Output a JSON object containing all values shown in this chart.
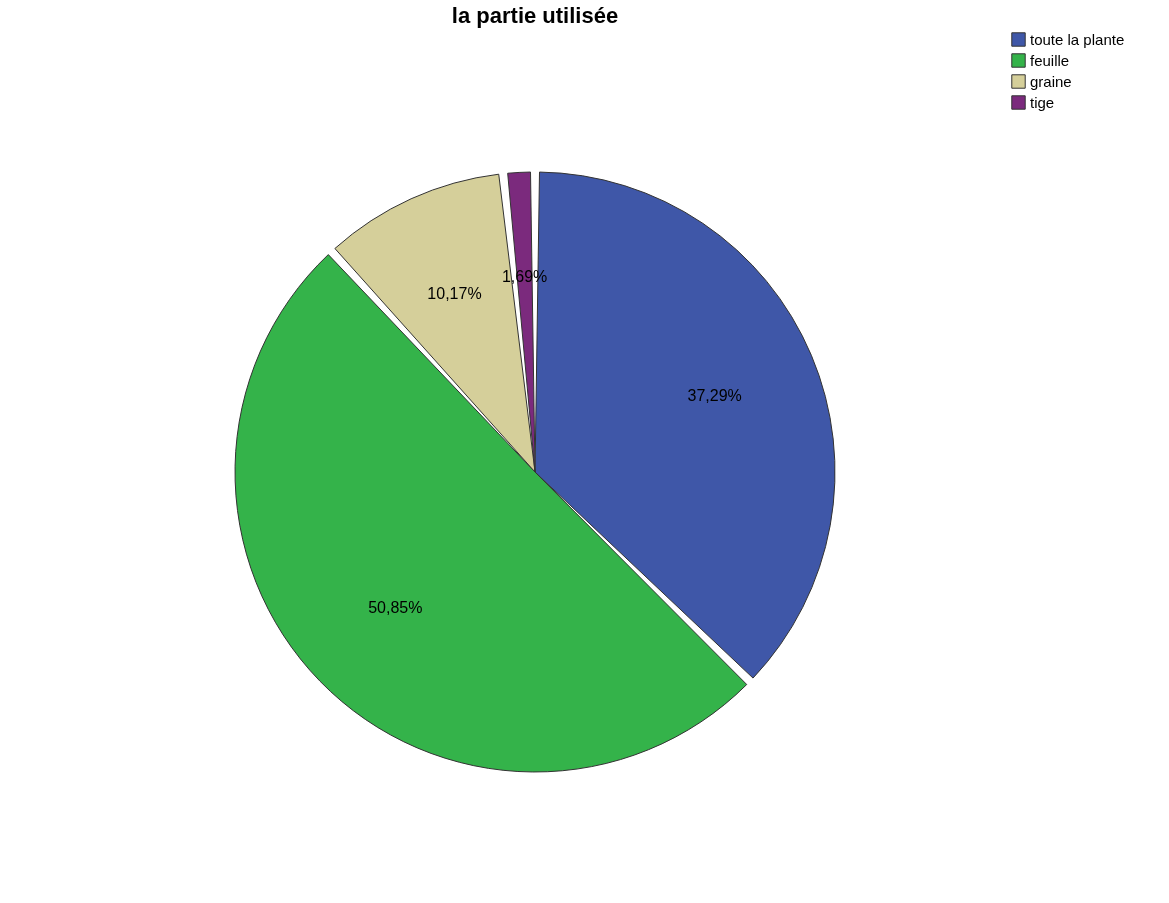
{
  "chart_data": {
    "type": "pie",
    "title": "la partie utilisée",
    "categories": [
      "toute la plante",
      "feuille",
      "graine",
      "tige"
    ],
    "values": [
      37.29,
      50.85,
      10.17,
      1.69
    ],
    "colors": [
      "#3f57a8",
      "#34b34a",
      "#d5cf9a",
      "#7b2a7d"
    ],
    "value_labels": [
      "37,29%",
      "50,85%",
      "10,17%",
      "1,69%"
    ],
    "legend": "top right"
  }
}
